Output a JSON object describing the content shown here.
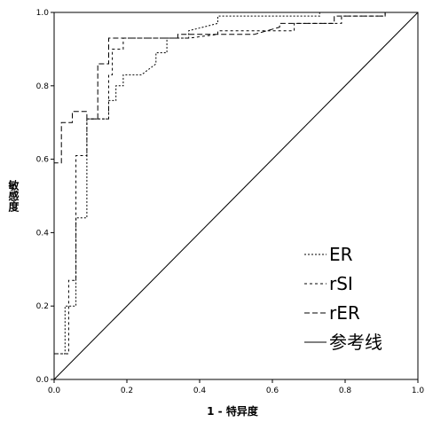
{
  "chart_data": {
    "type": "line",
    "title": "",
    "xlabel": "1 - 特异度",
    "ylabel": "敏感度",
    "xlim": [
      0,
      1
    ],
    "ylim": [
      0,
      1
    ],
    "x_ticks": [
      "0.0",
      "0.2",
      "0.4",
      "0.6",
      "0.8",
      "1.0"
    ],
    "y_ticks": [
      "0.0",
      "0.2",
      "0.4",
      "0.6",
      "0.8",
      "1.0"
    ],
    "grid": false,
    "legend_position": "bottom-right",
    "series": [
      {
        "name": "ER",
        "style": "dotted",
        "points": [
          [
            0,
            0
          ],
          [
            0,
            0.07
          ],
          [
            0.03,
            0.07
          ],
          [
            0.03,
            0.2
          ],
          [
            0.06,
            0.2
          ],
          [
            0.06,
            0.44
          ],
          [
            0.09,
            0.44
          ],
          [
            0.09,
            0.71
          ],
          [
            0.15,
            0.71
          ],
          [
            0.15,
            0.76
          ],
          [
            0.17,
            0.76
          ],
          [
            0.17,
            0.8
          ],
          [
            0.19,
            0.8
          ],
          [
            0.19,
            0.83
          ],
          [
            0.24,
            0.83
          ],
          [
            0.28,
            0.86
          ],
          [
            0.28,
            0.89
          ],
          [
            0.31,
            0.89
          ],
          [
            0.31,
            0.93
          ],
          [
            0.37,
            0.93
          ],
          [
            0.37,
            0.95
          ],
          [
            0.45,
            0.97
          ],
          [
            0.45,
            0.99
          ],
          [
            0.73,
            0.99
          ],
          [
            0.73,
            1.0
          ],
          [
            1.0,
            1.0
          ]
        ]
      },
      {
        "name": "rSI",
        "style": "short-dash",
        "points": [
          [
            0,
            0
          ],
          [
            0,
            0.07
          ],
          [
            0.04,
            0.07
          ],
          [
            0.04,
            0.27
          ],
          [
            0.06,
            0.27
          ],
          [
            0.06,
            0.61
          ],
          [
            0.09,
            0.61
          ],
          [
            0.09,
            0.71
          ],
          [
            0.15,
            0.71
          ],
          [
            0.15,
            0.83
          ],
          [
            0.16,
            0.83
          ],
          [
            0.16,
            0.9
          ],
          [
            0.19,
            0.9
          ],
          [
            0.19,
            0.93
          ],
          [
            0.37,
            0.93
          ],
          [
            0.45,
            0.94
          ],
          [
            0.45,
            0.95
          ],
          [
            0.66,
            0.95
          ],
          [
            0.66,
            0.97
          ],
          [
            0.79,
            0.97
          ],
          [
            0.79,
            0.99
          ],
          [
            0.91,
            0.99
          ],
          [
            0.91,
            1.0
          ],
          [
            1.0,
            1.0
          ]
        ]
      },
      {
        "name": "rER",
        "style": "long-dash",
        "points": [
          [
            0,
            0
          ],
          [
            0,
            0.59
          ],
          [
            0.02,
            0.59
          ],
          [
            0.02,
            0.7
          ],
          [
            0.05,
            0.7
          ],
          [
            0.05,
            0.73
          ],
          [
            0.09,
            0.73
          ],
          [
            0.09,
            0.71
          ],
          [
            0.12,
            0.71
          ],
          [
            0.12,
            0.86
          ],
          [
            0.15,
            0.86
          ],
          [
            0.15,
            0.93
          ],
          [
            0.3,
            0.93
          ],
          [
            0.3,
            0.93
          ],
          [
            0.34,
            0.93
          ],
          [
            0.34,
            0.94
          ],
          [
            0.55,
            0.94
          ],
          [
            0.62,
            0.96
          ],
          [
            0.62,
            0.97
          ],
          [
            0.77,
            0.97
          ],
          [
            0.77,
            0.99
          ],
          [
            0.91,
            0.99
          ],
          [
            0.91,
            1.0
          ],
          [
            1.0,
            1.0
          ]
        ]
      },
      {
        "name": "参考线",
        "style": "solid",
        "points": [
          [
            0,
            0
          ],
          [
            1,
            1
          ]
        ]
      }
    ]
  }
}
